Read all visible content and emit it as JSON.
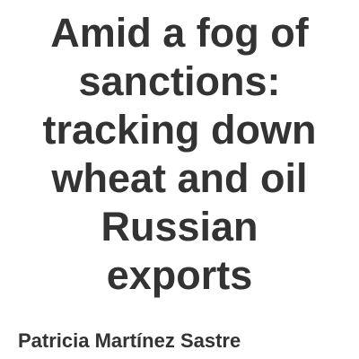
{
  "title": {
    "lines": [
      "Amid a fog of",
      "sanctions:",
      "tracking down",
      "wheat and oil",
      "Russian",
      "exports"
    ]
  },
  "author": "Patricia Martínez Sastre",
  "colors": {
    "text": "#333333",
    "background": "#ffffff"
  }
}
